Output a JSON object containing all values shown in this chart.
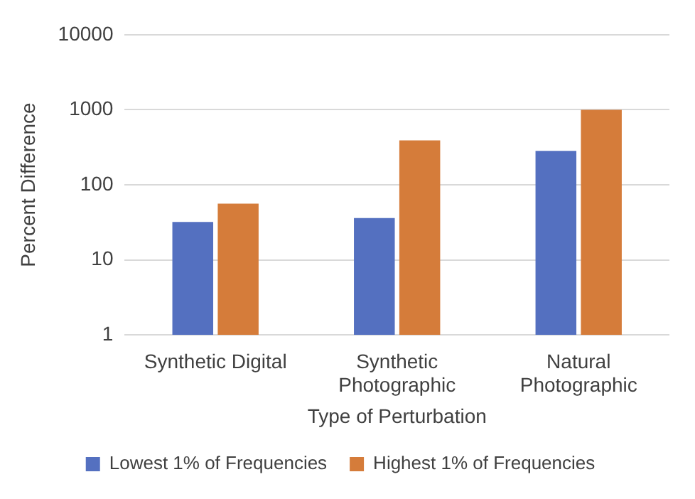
{
  "chart_data": {
    "type": "bar",
    "xlabel": "Type of Perturbation",
    "ylabel": "Percent Difference",
    "categories": [
      "Synthetic Digital",
      "Synthetic Photographic",
      "Natural Photographic"
    ],
    "series": [
      {
        "name": "Lowest 1% of Frequencies",
        "color": "#5470c0",
        "values": [
          32,
          36,
          283
        ]
      },
      {
        "name": "Highest 1% of Frequencies",
        "color": "#d57c3a",
        "values": [
          56,
          390,
          1000
        ]
      }
    ],
    "log": true,
    "ylim": [
      1,
      10000
    ],
    "yticks": [
      1,
      10,
      100,
      1000,
      10000
    ],
    "grid": "y",
    "legend": "bottom"
  }
}
